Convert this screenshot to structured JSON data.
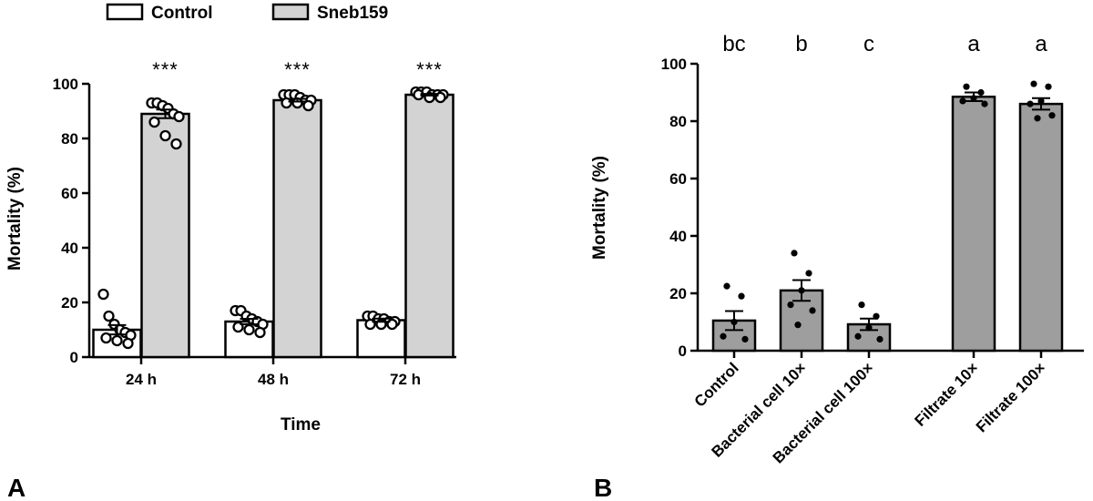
{
  "chart_data": [
    {
      "panel": "A",
      "type": "bar",
      "xlabel": "Time",
      "ylabel": "Mortality (%)",
      "ylim": [
        0,
        100
      ],
      "yticks": [
        "0",
        "20",
        "40",
        "60",
        "80",
        "100"
      ],
      "categories": [
        "24 h",
        "48 h",
        "72 h"
      ],
      "legend": {
        "position": "top",
        "entries": [
          "Control",
          "Sneb159"
        ]
      },
      "series": [
        {
          "name": "Control",
          "color": "#ffffff",
          "values": [
            10,
            13,
            13.5
          ],
          "sem": [
            1.7,
            1.0,
            0.6
          ],
          "points": [
            [
              23,
              15,
              12,
              10,
              9,
              8,
              7,
              6,
              5
            ],
            [
              17,
              17,
              15,
              14,
              13,
              12,
              11,
              10,
              9
            ],
            [
              15,
              15,
              14,
              14,
              13,
              13,
              12,
              12,
              12
            ]
          ]
        },
        {
          "name": "Sneb159",
          "color": "#d3d3d3",
          "values": [
            89,
            94,
            96
          ],
          "sem": [
            1.6,
            0.5,
            0.3
          ],
          "points": [
            [
              93,
              93,
              92,
              91,
              89,
              88,
              86,
              81,
              78
            ],
            [
              96,
              96,
              96,
              95,
              94,
              94,
              93,
              93,
              92
            ],
            [
              97,
              97,
              97,
              96,
              96,
              96,
              96,
              95,
              95
            ]
          ]
        }
      ],
      "annotations": [
        "***",
        "***",
        "***"
      ]
    },
    {
      "panel": "B",
      "type": "bar",
      "xlabel": "",
      "ylabel": "Mortality (%)",
      "ylim": [
        0,
        100
      ],
      "yticks": [
        "0",
        "20",
        "40",
        "60",
        "80",
        "100"
      ],
      "categories": [
        "Control",
        "Bacterial cell 10×",
        "Bacterial cell 100×",
        "Filtrate 10×",
        "Filtrate 100×"
      ],
      "bar_color": "#9e9e9e",
      "values": [
        10.5,
        21,
        9.2,
        88.5,
        86
      ],
      "sem": [
        3.3,
        3.6,
        2.0,
        1.5,
        2.0
      ],
      "points": [
        [
          22.5,
          19,
          10,
          5,
          4
        ],
        [
          34,
          27,
          21,
          16,
          14,
          9
        ],
        [
          16,
          12,
          8,
          5,
          4
        ],
        [
          92,
          90,
          88,
          87,
          86
        ],
        [
          93,
          92,
          87,
          86,
          82,
          81
        ]
      ],
      "group_letters": [
        "bc",
        "b",
        "c",
        "a",
        "a"
      ]
    }
  ]
}
